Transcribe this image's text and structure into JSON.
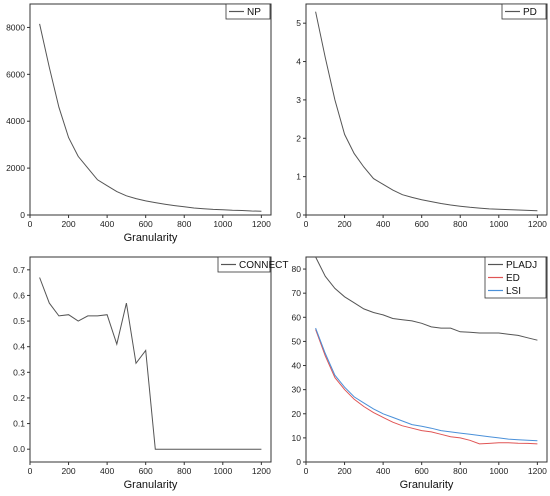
{
  "chart_data": [
    {
      "type": "line",
      "xlabel": "Granularity",
      "ylabel": "",
      "xlim": [
        0,
        1250
      ],
      "ylim": [
        0,
        9000
      ],
      "xticks": [
        0,
        200,
        400,
        600,
        800,
        1000,
        1200
      ],
      "yticks": [
        0,
        2000,
        4000,
        6000,
        8000
      ],
      "legend_position": "top-right",
      "series": [
        {
          "name": "NP",
          "color": "#555555",
          "x": [
            50,
            100,
            150,
            200,
            250,
            300,
            350,
            400,
            450,
            500,
            550,
            600,
            650,
            700,
            750,
            800,
            850,
            900,
            950,
            1000,
            1050,
            1100,
            1150,
            1200
          ],
          "y": [
            8150,
            6300,
            4600,
            3300,
            2500,
            2000,
            1500,
            1250,
            1000,
            820,
            700,
            600,
            530,
            460,
            400,
            350,
            300,
            270,
            240,
            220,
            200,
            190,
            170,
            160
          ]
        }
      ]
    },
    {
      "type": "line",
      "xlabel": "",
      "ylabel": "",
      "xlim": [
        0,
        1250
      ],
      "ylim": [
        0,
        5.5
      ],
      "xticks": [
        0,
        200,
        400,
        600,
        800,
        1000,
        1200
      ],
      "yticks": [
        0,
        1,
        2,
        3,
        4,
        5
      ],
      "legend_position": "top-right",
      "series": [
        {
          "name": "PD",
          "color": "#555555",
          "x": [
            50,
            100,
            150,
            200,
            250,
            300,
            350,
            400,
            450,
            500,
            550,
            600,
            650,
            700,
            750,
            800,
            850,
            900,
            950,
            1000,
            1050,
            1100,
            1150,
            1200
          ],
          "y": [
            5.3,
            4.1,
            3.0,
            2.1,
            1.6,
            1.25,
            0.95,
            0.8,
            0.65,
            0.53,
            0.46,
            0.4,
            0.35,
            0.3,
            0.26,
            0.23,
            0.2,
            0.18,
            0.16,
            0.15,
            0.14,
            0.13,
            0.12,
            0.11
          ]
        }
      ]
    },
    {
      "type": "line",
      "xlabel": "Granularity",
      "ylabel": "",
      "xlim": [
        0,
        1250
      ],
      "ylim": [
        -0.05,
        0.75
      ],
      "xticks": [
        0,
        200,
        400,
        600,
        800,
        1000,
        1200
      ],
      "yticks": [
        0.0,
        0.1,
        0.2,
        0.3,
        0.4,
        0.5,
        0.6,
        0.7
      ],
      "ytick_labels": [
        "0.0",
        "0.1",
        "0.2",
        "0.3",
        "0.4",
        "0.5",
        "0.6",
        "0.7"
      ],
      "legend_position": "top-right",
      "series": [
        {
          "name": "CONNECT",
          "color": "#555555",
          "x": [
            50,
            100,
            150,
            200,
            250,
            300,
            350,
            400,
            450,
            500,
            550,
            600,
            650,
            700,
            750,
            800,
            850,
            900,
            950,
            1000,
            1050,
            1100,
            1150,
            1200
          ],
          "y": [
            0.67,
            0.57,
            0.52,
            0.525,
            0.5,
            0.52,
            0.52,
            0.525,
            0.41,
            0.57,
            0.335,
            0.385,
            0.0,
            0.0,
            0.0,
            0.0,
            0.0,
            0.0,
            0.0,
            0.0,
            0.0,
            0.0,
            0.0,
            0.0
          ]
        }
      ]
    },
    {
      "type": "line",
      "xlabel": "Granularity",
      "ylabel": "",
      "xlim": [
        0,
        1250
      ],
      "ylim": [
        0,
        85
      ],
      "xticks": [
        0,
        200,
        400,
        600,
        800,
        1000,
        1200
      ],
      "yticks": [
        0,
        10,
        20,
        30,
        40,
        50,
        60,
        70,
        80
      ],
      "legend_position": "top-right",
      "series": [
        {
          "name": "PLADJ",
          "color": "#555555",
          "x": [
            50,
            100,
            150,
            200,
            250,
            300,
            350,
            400,
            450,
            500,
            550,
            600,
            650,
            700,
            750,
            800,
            850,
            900,
            950,
            1000,
            1050,
            1100,
            1150,
            1200
          ],
          "y": [
            85,
            77,
            72,
            68.5,
            66,
            63.5,
            62,
            61,
            59.5,
            59,
            58.5,
            57.5,
            56,
            55.5,
            55.5,
            54,
            53.8,
            53.5,
            53.5,
            53.5,
            53,
            52.5,
            51.5,
            50.5
          ]
        },
        {
          "name": "ED",
          "color": "#e05555",
          "x": [
            50,
            100,
            150,
            200,
            250,
            300,
            350,
            400,
            450,
            500,
            550,
            600,
            650,
            700,
            750,
            800,
            850,
            900,
            950,
            1000,
            1050,
            1100,
            1150,
            1200
          ],
          "y": [
            55,
            44,
            35,
            30,
            26,
            23,
            20.5,
            18.5,
            16.5,
            15,
            14,
            13,
            12.5,
            11.5,
            10.5,
            10,
            9,
            7.5,
            7.7,
            8,
            8,
            7.8,
            7.7,
            7.5
          ]
        },
        {
          "name": "LSI",
          "color": "#4a90d9",
          "x": [
            50,
            100,
            150,
            200,
            250,
            300,
            350,
            400,
            450,
            500,
            550,
            600,
            650,
            700,
            750,
            800,
            850,
            900,
            950,
            1000,
            1050,
            1100,
            1150,
            1200
          ],
          "y": [
            55.5,
            45,
            36,
            31,
            27,
            24.5,
            22,
            20,
            18.5,
            17,
            15.5,
            14.8,
            14,
            13,
            12.5,
            12,
            11.5,
            11,
            10.5,
            10,
            9.5,
            9.2,
            9,
            8.8
          ]
        }
      ]
    }
  ]
}
